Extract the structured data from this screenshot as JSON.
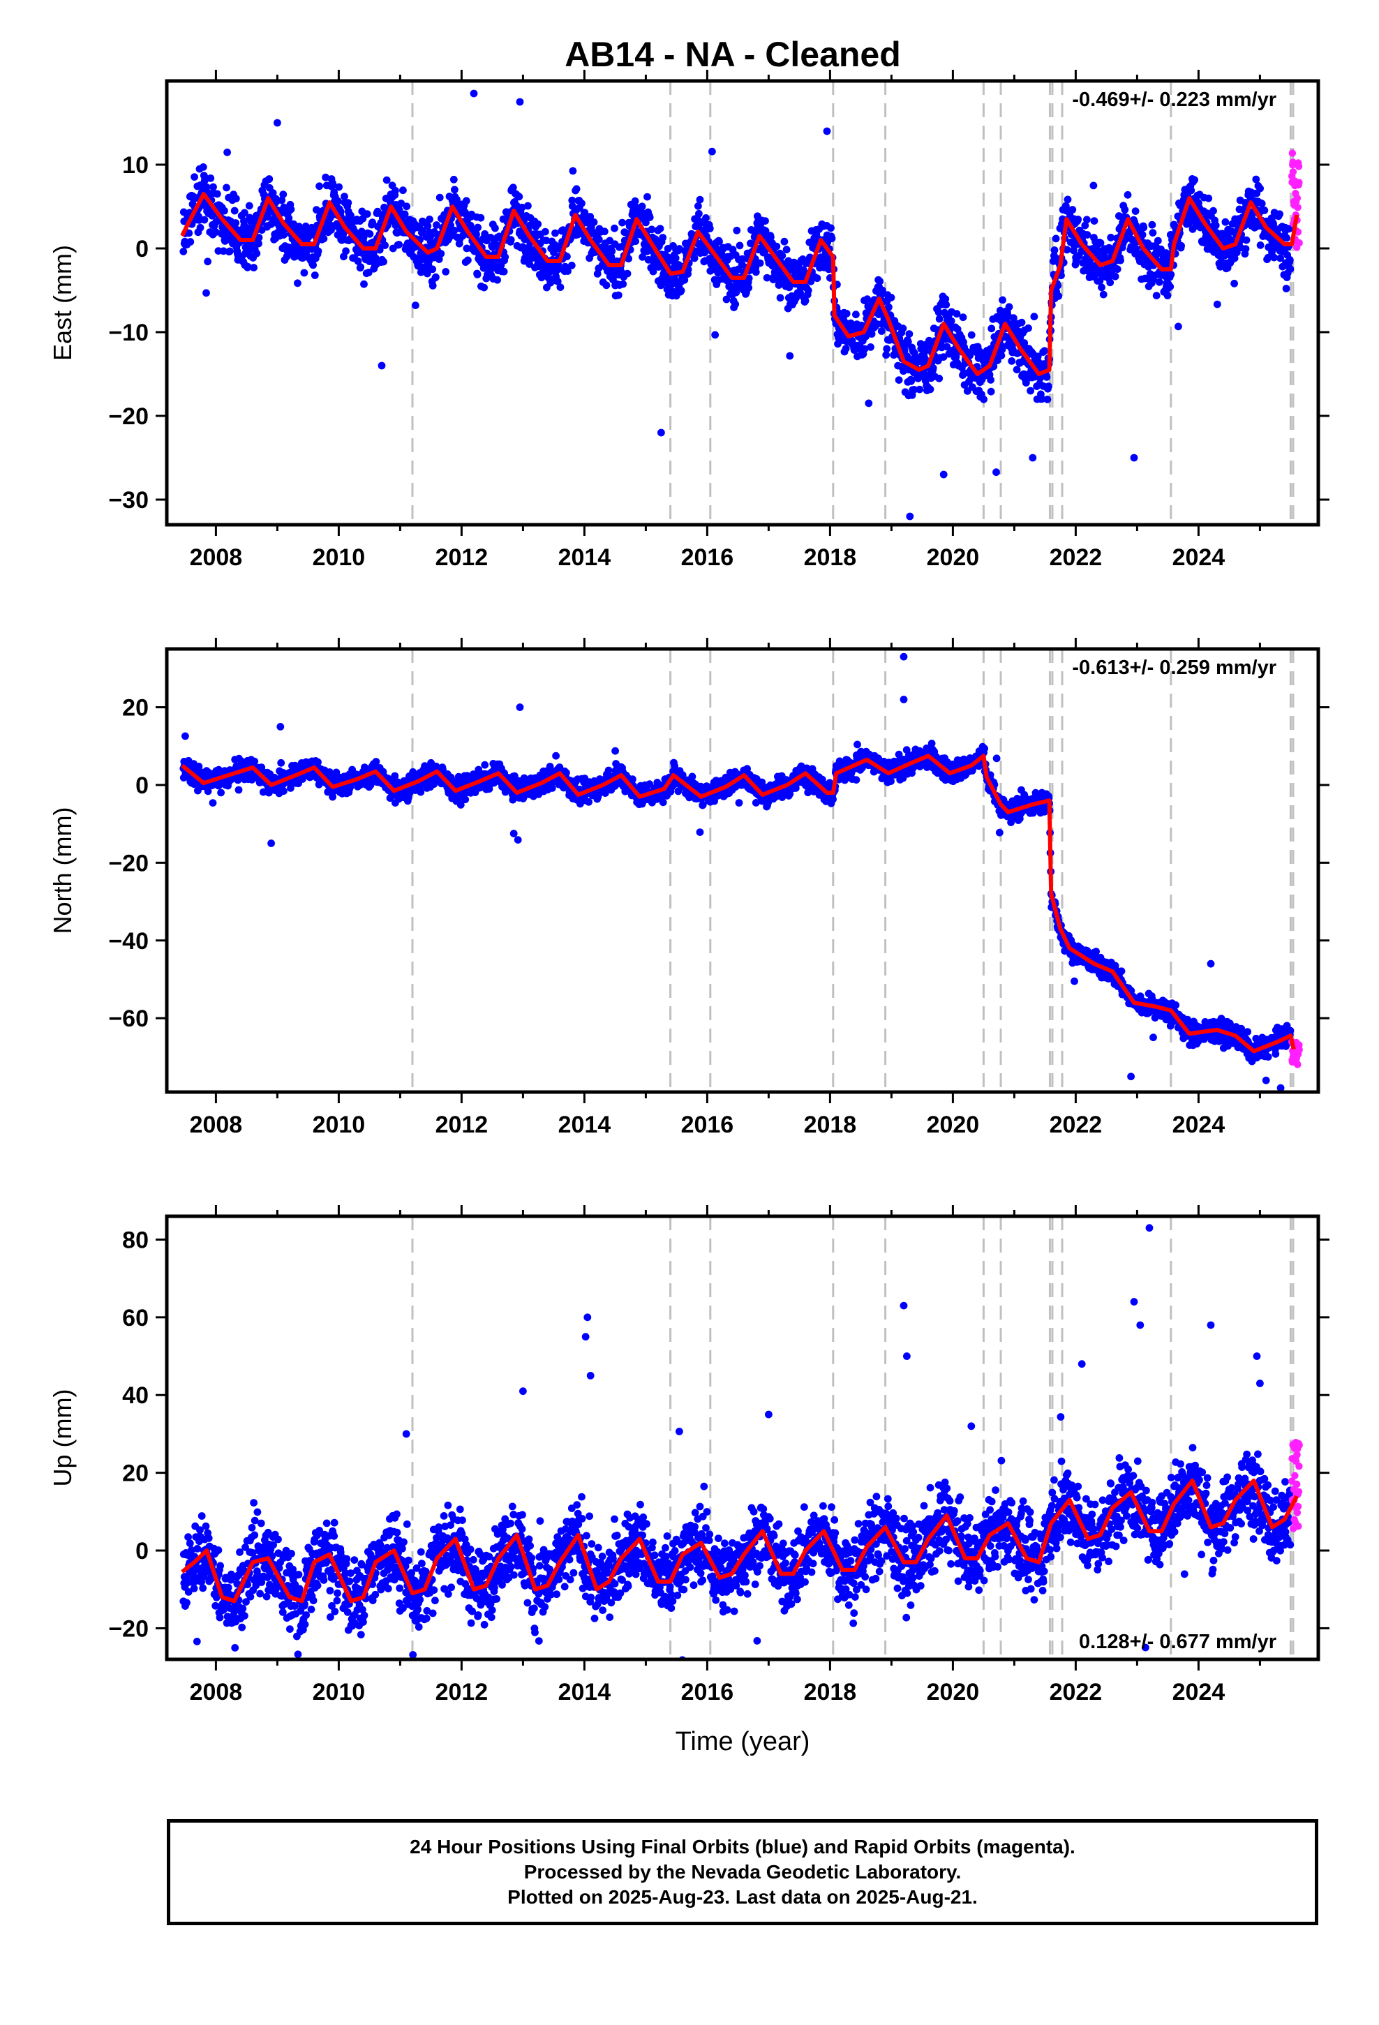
{
  "chart_data": {
    "type": "scatter",
    "title": "AB14  - NA - Cleaned",
    "xlabel": "Time (year)",
    "xlim": [
      2007.2,
      2025.95
    ],
    "xticks": [
      "2008",
      "2010",
      "2012",
      "2014",
      "2016",
      "2018",
      "2020",
      "2022",
      "2024"
    ],
    "grid": false,
    "colors": {
      "final_orbits": "#0000ff",
      "rapid_orbits": "#ff1fff",
      "model": "#ff0000",
      "steps": "#c0c0c0"
    },
    "step_epochs": [
      2011.2,
      2015.4,
      2016.05,
      2018.05,
      2018.9,
      2020.5,
      2020.78,
      2021.58,
      2021.62,
      2021.78,
      2023.55,
      2025.5,
      2025.54
    ],
    "panels": [
      {
        "key": "east",
        "ylabel": "East (mm)",
        "ylim": [
          -33,
          20
        ],
        "yticks": [
          10,
          0,
          -10,
          -20,
          -30
        ],
        "ytick_labels": [
          "10",
          "0",
          "−10",
          "−20",
          "−30"
        ],
        "rate": "-0.469+/- 0.223 mm/yr",
        "rate_position": "top-right",
        "model": [
          [
            2007.45,
            1.5
          ],
          [
            2007.55,
            3.0
          ],
          [
            2007.8,
            6.5
          ],
          [
            2008.1,
            3.5
          ],
          [
            2008.4,
            1.0
          ],
          [
            2008.6,
            1.0
          ],
          [
            2008.85,
            6.0
          ],
          [
            2009.1,
            3.0
          ],
          [
            2009.4,
            0.5
          ],
          [
            2009.6,
            0.5
          ],
          [
            2009.85,
            5.5
          ],
          [
            2010.1,
            2.5
          ],
          [
            2010.4,
            0.0
          ],
          [
            2010.6,
            0.0
          ],
          [
            2010.85,
            5.0
          ],
          [
            2011.1,
            2.0
          ],
          [
            2011.45,
            -0.5
          ],
          [
            2011.6,
            0.0
          ],
          [
            2011.85,
            5.0
          ],
          [
            2012.1,
            2.0
          ],
          [
            2012.4,
            -1.0
          ],
          [
            2012.6,
            -1.0
          ],
          [
            2012.85,
            4.5
          ],
          [
            2013.1,
            1.5
          ],
          [
            2013.4,
            -1.5
          ],
          [
            2013.6,
            -1.5
          ],
          [
            2013.85,
            4.0
          ],
          [
            2014.1,
            1.0
          ],
          [
            2014.4,
            -2.0
          ],
          [
            2014.6,
            -2.0
          ],
          [
            2014.85,
            3.5
          ],
          [
            2015.1,
            0.5
          ],
          [
            2015.4,
            -3.0
          ],
          [
            2015.6,
            -2.8
          ],
          [
            2015.85,
            2.0
          ],
          [
            2016.1,
            -0.5
          ],
          [
            2016.4,
            -3.5
          ],
          [
            2016.6,
            -3.5
          ],
          [
            2016.85,
            1.5
          ],
          [
            2017.1,
            -1.0
          ],
          [
            2017.4,
            -4.0
          ],
          [
            2017.6,
            -4.0
          ],
          [
            2017.85,
            1.0
          ],
          [
            2018.05,
            -1.0
          ],
          [
            2018.07,
            -8.0
          ],
          [
            2018.3,
            -10.5
          ],
          [
            2018.55,
            -10.0
          ],
          [
            2018.8,
            -6.0
          ],
          [
            2018.95,
            -8.5
          ],
          [
            2019.2,
            -13.5
          ],
          [
            2019.45,
            -14.5
          ],
          [
            2019.6,
            -14.0
          ],
          [
            2019.85,
            -9.0
          ],
          [
            2020.1,
            -12.0
          ],
          [
            2020.4,
            -15.0
          ],
          [
            2020.6,
            -14.0
          ],
          [
            2020.85,
            -9.0
          ],
          [
            2021.1,
            -12.0
          ],
          [
            2021.4,
            -15.0
          ],
          [
            2021.57,
            -14.5
          ],
          [
            2021.6,
            -5.0
          ],
          [
            2021.75,
            -2.0
          ],
          [
            2021.85,
            3.5
          ],
          [
            2022.1,
            0.5
          ],
          [
            2022.4,
            -2.0
          ],
          [
            2022.6,
            -1.5
          ],
          [
            2022.85,
            3.5
          ],
          [
            2023.1,
            0.0
          ],
          [
            2023.4,
            -2.5
          ],
          [
            2023.55,
            -2.5
          ],
          [
            2023.6,
            0.5
          ],
          [
            2023.85,
            6.0
          ],
          [
            2024.1,
            3.0
          ],
          [
            2024.4,
            0.0
          ],
          [
            2024.6,
            0.5
          ],
          [
            2024.85,
            5.5
          ],
          [
            2025.1,
            2.5
          ],
          [
            2025.4,
            0.5
          ],
          [
            2025.52,
            0.5
          ],
          [
            2025.6,
            4.0
          ]
        ],
        "scatter_amplitude": 1.7,
        "outliers": [
          [
            2010.7,
            -14.0
          ],
          [
            2012.2,
            18.5
          ],
          [
            2012.95,
            17.5
          ],
          [
            2015.25,
            -22.0
          ],
          [
            2019.3,
            -32.0
          ],
          [
            2019.85,
            -27.0
          ],
          [
            2021.3,
            -25.0
          ],
          [
            2022.95,
            -25.0
          ],
          [
            2009.0,
            15.0
          ],
          [
            2017.95,
            14.0
          ]
        ],
        "rapid_range": [
          0.0,
          12.0
        ]
      },
      {
        "key": "north",
        "ylabel": "North (mm)",
        "ylim": [
          -79,
          35
        ],
        "yticks": [
          20,
          0,
          -20,
          -40,
          -60
        ],
        "ytick_labels": [
          "20",
          "0",
          "−20",
          "−40",
          "−60"
        ],
        "rate": "-0.613+/- 0.259 mm/yr",
        "rate_position": "top-right",
        "model": [
          [
            2007.45,
            5.0
          ],
          [
            2007.8,
            0.5
          ],
          [
            2008.1,
            2.0
          ],
          [
            2008.6,
            4.5
          ],
          [
            2008.9,
            0.0
          ],
          [
            2009.3,
            2.5
          ],
          [
            2009.6,
            4.5
          ],
          [
            2009.9,
            -0.5
          ],
          [
            2010.3,
            1.5
          ],
          [
            2010.6,
            3.5
          ],
          [
            2010.9,
            -1.5
          ],
          [
            2011.3,
            1.0
          ],
          [
            2011.6,
            3.5
          ],
          [
            2011.9,
            -1.5
          ],
          [
            2012.3,
            1.0
          ],
          [
            2012.6,
            3.0
          ],
          [
            2012.9,
            -2.0
          ],
          [
            2013.3,
            0.5
          ],
          [
            2013.6,
            3.0
          ],
          [
            2013.9,
            -2.5
          ],
          [
            2014.3,
            0.0
          ],
          [
            2014.6,
            2.5
          ],
          [
            2014.9,
            -3.0
          ],
          [
            2015.3,
            -1.0
          ],
          [
            2015.45,
            2.5
          ],
          [
            2015.9,
            -3.0
          ],
          [
            2016.3,
            -0.5
          ],
          [
            2016.6,
            2.5
          ],
          [
            2016.9,
            -2.5
          ],
          [
            2017.3,
            0.0
          ],
          [
            2017.6,
            3.0
          ],
          [
            2017.95,
            -2.0
          ],
          [
            2018.05,
            -2.0
          ],
          [
            2018.1,
            3.0
          ],
          [
            2018.6,
            6.5
          ],
          [
            2018.95,
            3.0
          ],
          [
            2019.3,
            5.5
          ],
          [
            2019.6,
            7.5
          ],
          [
            2019.95,
            3.0
          ],
          [
            2020.3,
            5.0
          ],
          [
            2020.5,
            7.5
          ],
          [
            2020.55,
            2.0
          ],
          [
            2020.78,
            -5.0
          ],
          [
            2020.9,
            -7.0
          ],
          [
            2021.3,
            -5.0
          ],
          [
            2021.57,
            -4.0
          ],
          [
            2021.6,
            -28.0
          ],
          [
            2021.75,
            -37.0
          ],
          [
            2021.9,
            -42.0
          ],
          [
            2022.3,
            -46.0
          ],
          [
            2022.6,
            -48.0
          ],
          [
            2022.95,
            -56.0
          ],
          [
            2023.3,
            -57.0
          ],
          [
            2023.55,
            -58.0
          ],
          [
            2023.85,
            -64.0
          ],
          [
            2024.3,
            -63.0
          ],
          [
            2024.6,
            -64.5
          ],
          [
            2024.9,
            -68.5
          ],
          [
            2025.3,
            -66.0
          ],
          [
            2025.5,
            -64.5
          ],
          [
            2025.55,
            -68.0
          ]
        ],
        "scatter_amplitude": 1.4,
        "outliers": [
          [
            2019.2,
            33.0
          ],
          [
            2012.95,
            20.0
          ],
          [
            2009.05,
            15.0
          ],
          [
            2008.9,
            -15.0
          ],
          [
            2012.85,
            -12.5
          ],
          [
            2022.9,
            -75.0
          ],
          [
            2025.1,
            -76.0
          ],
          [
            2024.2,
            -46.0
          ],
          [
            2019.2,
            22.0
          ]
        ],
        "rapid_range": [
          -72.0,
          -66.0
        ]
      },
      {
        "key": "up",
        "ylabel": "Up (mm)",
        "ylim": [
          -28,
          86
        ],
        "yticks": [
          80,
          60,
          40,
          20,
          0,
          -20
        ],
        "ytick_labels": [
          "80",
          "60",
          "40",
          "20",
          "0",
          "−20"
        ],
        "rate": "0.128+/- 0.677 mm/yr",
        "rate_position": "bottom-right",
        "model": [
          [
            2007.45,
            -5.5
          ],
          [
            2007.65,
            -3.0
          ],
          [
            2007.85,
            0.0
          ],
          [
            2008.1,
            -12.0
          ],
          [
            2008.3,
            -13.0
          ],
          [
            2008.6,
            -3.0
          ],
          [
            2008.85,
            -2.0
          ],
          [
            2009.2,
            -12.0
          ],
          [
            2009.4,
            -13.0
          ],
          [
            2009.6,
            -3.0
          ],
          [
            2009.85,
            -1.0
          ],
          [
            2010.2,
            -13.0
          ],
          [
            2010.4,
            -12.0
          ],
          [
            2010.6,
            -3.0
          ],
          [
            2010.9,
            0.0
          ],
          [
            2011.2,
            -11.0
          ],
          [
            2011.4,
            -10.0
          ],
          [
            2011.6,
            -2.0
          ],
          [
            2011.9,
            3.0
          ],
          [
            2012.2,
            -10.0
          ],
          [
            2012.4,
            -9.0
          ],
          [
            2012.6,
            -2.0
          ],
          [
            2012.9,
            4.0
          ],
          [
            2013.2,
            -10.0
          ],
          [
            2013.4,
            -9.0
          ],
          [
            2013.6,
            -3.0
          ],
          [
            2013.9,
            4.0
          ],
          [
            2014.2,
            -10.0
          ],
          [
            2014.4,
            -8.0
          ],
          [
            2014.6,
            -2.0
          ],
          [
            2014.9,
            3.0
          ],
          [
            2015.2,
            -8.0
          ],
          [
            2015.4,
            -8.0
          ],
          [
            2015.6,
            -1.0
          ],
          [
            2015.9,
            2.0
          ],
          [
            2016.2,
            -7.0
          ],
          [
            2016.4,
            -6.0
          ],
          [
            2016.6,
            -1.0
          ],
          [
            2016.9,
            5.0
          ],
          [
            2017.2,
            -6.0
          ],
          [
            2017.4,
            -6.0
          ],
          [
            2017.6,
            0.0
          ],
          [
            2017.9,
            5.0
          ],
          [
            2018.2,
            -5.0
          ],
          [
            2018.4,
            -5.0
          ],
          [
            2018.6,
            1.0
          ],
          [
            2018.9,
            6.0
          ],
          [
            2019.2,
            -3.0
          ],
          [
            2019.4,
            -3.0
          ],
          [
            2019.6,
            3.0
          ],
          [
            2019.9,
            9.0
          ],
          [
            2020.2,
            -2.0
          ],
          [
            2020.4,
            -2.0
          ],
          [
            2020.6,
            4.0
          ],
          [
            2020.9,
            7.0
          ],
          [
            2021.2,
            -2.0
          ],
          [
            2021.4,
            -3.0
          ],
          [
            2021.6,
            7.0
          ],
          [
            2021.9,
            13.0
          ],
          [
            2022.2,
            3.0
          ],
          [
            2022.4,
            4.0
          ],
          [
            2022.6,
            11.0
          ],
          [
            2022.9,
            15.0
          ],
          [
            2023.2,
            5.0
          ],
          [
            2023.4,
            5.0
          ],
          [
            2023.6,
            12.0
          ],
          [
            2023.9,
            18.0
          ],
          [
            2024.2,
            6.0
          ],
          [
            2024.4,
            7.0
          ],
          [
            2024.6,
            13.0
          ],
          [
            2024.9,
            18.0
          ],
          [
            2025.2,
            6.0
          ],
          [
            2025.4,
            8.0
          ],
          [
            2025.6,
            14.0
          ]
        ],
        "scatter_amplitude": 4.8,
        "outliers": [
          [
            2014.05,
            60.0
          ],
          [
            2014.02,
            55.0
          ],
          [
            2014.1,
            45.0
          ],
          [
            2013.0,
            41.0
          ],
          [
            2019.2,
            63.0
          ],
          [
            2019.25,
            50.0
          ],
          [
            2023.2,
            83.0
          ],
          [
            2022.95,
            64.0
          ],
          [
            2023.05,
            58.0
          ],
          [
            2024.2,
            58.0
          ],
          [
            2024.95,
            50.0
          ],
          [
            2025.0,
            43.0
          ],
          [
            2017.0,
            35.0
          ],
          [
            2011.1,
            30.0
          ],
          [
            2022.1,
            48.0
          ],
          [
            2020.3,
            32.0
          ]
        ],
        "rapid_range": [
          5.0,
          28.0
        ]
      }
    ]
  },
  "caption": {
    "line1": "24 Hour Positions Using Final Orbits (blue) and Rapid Orbits (magenta).",
    "line2": "Processed by the Nevada Geodetic Laboratory.",
    "line3": "Plotted on 2025-Aug-23. Last data on 2025-Aug-21."
  }
}
